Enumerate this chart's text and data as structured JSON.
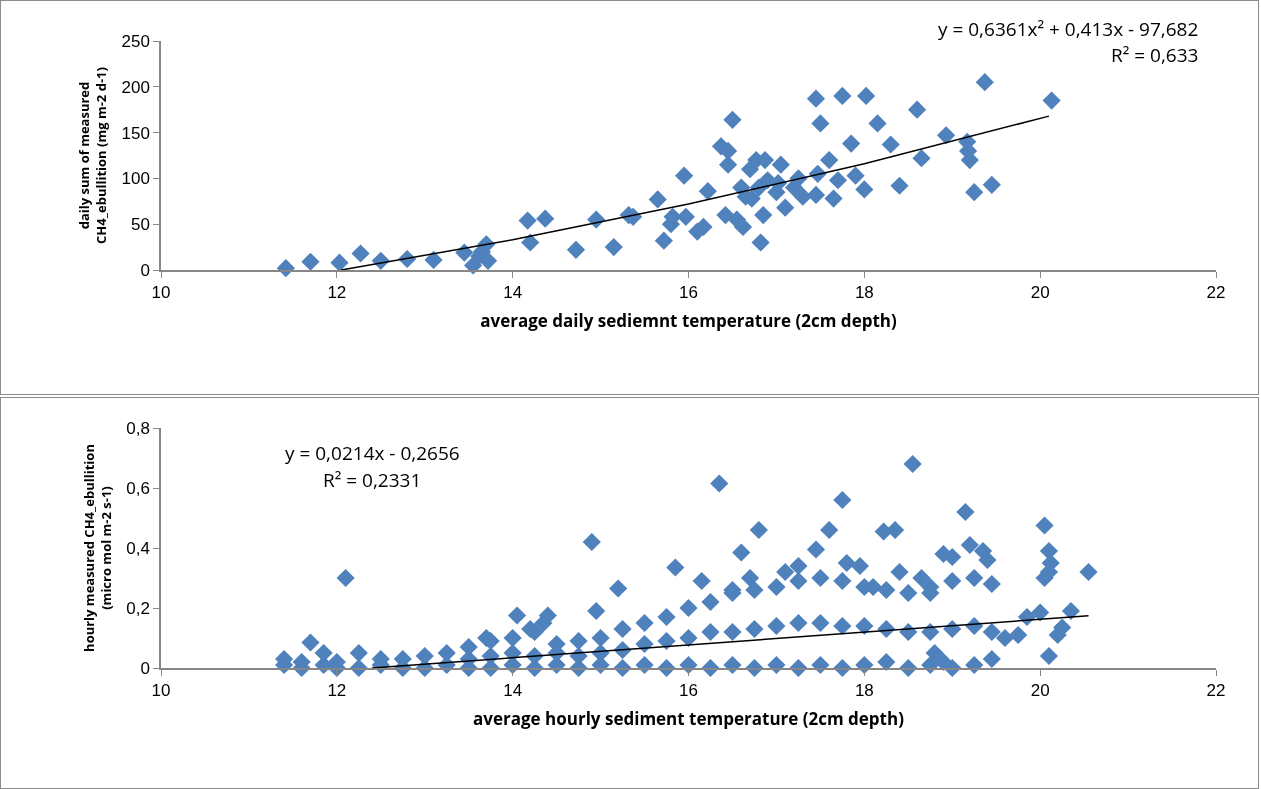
{
  "chart_data": [
    {
      "type": "scatter",
      "xlabel": "average daily sediemnt temperature (2cm depth)",
      "ylabel": "daily sum of measured\nCH4_ebullition (mg m-2 d-1)",
      "xlim": [
        10,
        22
      ],
      "xticks": [
        10,
        12,
        14,
        16,
        18,
        20,
        22
      ],
      "ylim": [
        0,
        250
      ],
      "yticks": [
        0,
        50,
        100,
        150,
        200,
        250
      ],
      "marker": "diamond",
      "grid": false,
      "annotations": [
        "y = 0,6361x² + 0,413x - 97,682",
        "R² = 0,633"
      ],
      "series": [
        {
          "color": "#4f81bd",
          "x": [
            11.42,
            11.7,
            12.03,
            12.27,
            12.5,
            12.8,
            13.1,
            13.45,
            13.55,
            13.62,
            13.7,
            13.72,
            13.65,
            14.17,
            14.2,
            14.37,
            14.72,
            14.95,
            15.15,
            15.32,
            15.37,
            15.65,
            15.72,
            15.8,
            15.82,
            15.95,
            15.97,
            16.1,
            16.17,
            16.22,
            16.37,
            16.45,
            16.5,
            16.42,
            16.45,
            16.55,
            16.6,
            16.62,
            16.65,
            16.7,
            16.72,
            16.77,
            16.8,
            16.82,
            16.85,
            16.87,
            16.9,
            17.0,
            17.02,
            17.05,
            17.1,
            17.2,
            17.25,
            17.3,
            17.45,
            17.47,
            17.5,
            17.45,
            17.6,
            17.65,
            17.7,
            17.75,
            17.85,
            17.9,
            18.02,
            18.0,
            18.15,
            18.3,
            18.4,
            18.6,
            18.65,
            18.93,
            19.17,
            19.18,
            19.2,
            19.25,
            19.37,
            19.45,
            20.13
          ],
          "values": [
            2,
            9,
            8,
            18,
            10,
            12,
            11,
            19,
            5,
            15,
            28,
            10,
            20,
            54,
            30,
            56,
            22,
            55,
            25,
            60,
            58,
            77,
            32,
            50,
            58,
            103,
            58,
            42,
            47,
            86,
            135,
            130,
            164,
            60,
            115,
            55,
            90,
            47,
            80,
            110,
            78,
            120,
            90,
            30,
            60,
            120,
            98,
            85,
            95,
            115,
            68,
            90,
            100,
            80,
            187,
            105,
            160,
            82,
            120,
            78,
            98,
            190,
            138,
            103,
            190,
            88,
            160,
            137,
            92,
            175,
            122,
            147,
            140,
            130,
            120,
            85,
            205,
            93,
            185
          ]
        },
        {
          "type": "line",
          "color": "#000000",
          "marker": "none",
          "x": [
            12.05,
            14,
            16,
            18,
            20.1
          ],
          "values": [
            0,
            33,
            72,
            116,
            168
          ]
        }
      ]
    },
    {
      "type": "scatter",
      "xlabel": "average hourly sediment temperature (2cm depth)",
      "ylabel": "hourly measured CH4_ebullition\n(micro mol m-2 s-1)",
      "xlim": [
        10,
        22
      ],
      "xticks": [
        10,
        12,
        14,
        16,
        18,
        20,
        22
      ],
      "ylim": [
        0,
        0.8
      ],
      "yticks": [
        0,
        {
          "value": 0.2,
          "label": "0,2"
        },
        {
          "value": 0.4,
          "label": "0,4"
        },
        {
          "value": 0.6,
          "label": "0,6"
        },
        {
          "value": 0.8,
          "label": "0,8"
        }
      ],
      "marker": "diamond",
      "grid": false,
      "annotations": [
        "y = 0,0214x - 0,2656",
        "R² = 0,2331"
      ],
      "series": [
        {
          "color": "#4f81bd",
          "x": [
            12.1,
            14.9,
            16.35,
            18.55,
            17.75,
            19.15,
            20.05,
            16.8,
            18.22,
            18.35,
            15.85,
            15.2,
            14.95,
            14.05,
            14.4,
            11.7,
            13.7,
            14.2,
            14.35,
            16.6,
            17.6,
            17.45,
            18.9,
            19.0,
            19.2,
            19.35,
            19.4,
            20.1,
            20.12,
            20.1,
            20.05,
            20.55,
            20.35,
            20.25,
            20.2,
            20.1,
            19.85,
            20.0,
            16.7,
            16.15,
            16.5,
            17.1,
            17.25,
            17.8,
            17.95,
            18.1,
            18.4,
            18.65,
            18.75,
            11.4,
            11.4,
            11.6,
            11.6,
            11.85,
            11.85,
            12.0,
            12.0,
            12.25,
            12.25,
            12.5,
            12.5,
            12.75,
            12.75,
            13.0,
            13.0,
            13.25,
            13.25,
            13.5,
            13.5,
            13.5,
            13.75,
            13.75,
            13.75,
            14.0,
            14.0,
            14.0,
            14.25,
            14.25,
            14.25,
            14.5,
            14.5,
            14.5,
            14.75,
            14.75,
            14.75,
            15.0,
            15.0,
            15.0,
            15.25,
            15.25,
            15.25,
            15.5,
            15.5,
            15.5,
            15.75,
            15.75,
            15.75,
            16.0,
            16.0,
            16.0,
            16.25,
            16.25,
            16.25,
            16.5,
            16.5,
            16.5,
            16.75,
            16.75,
            16.75,
            17.0,
            17.0,
            17.0,
            17.25,
            17.25,
            17.25,
            17.5,
            17.5,
            17.5,
            17.75,
            17.75,
            17.75,
            18.0,
            18.0,
            18.0,
            18.25,
            18.25,
            18.25,
            18.5,
            18.5,
            18.5,
            18.75,
            18.75,
            18.75,
            19.0,
            19.0,
            19.0,
            19.25,
            19.25,
            19.25,
            19.45,
            19.45,
            19.45,
            19.6,
            19.75,
            18.8,
            18.9
          ],
          "values": [
            0.3,
            0.42,
            0.615,
            0.68,
            0.56,
            0.52,
            0.475,
            0.46,
            0.455,
            0.46,
            0.335,
            0.265,
            0.19,
            0.175,
            0.175,
            0.085,
            0.1,
            0.13,
            0.15,
            0.385,
            0.46,
            0.395,
            0.38,
            0.37,
            0.41,
            0.39,
            0.36,
            0.39,
            0.35,
            0.32,
            0.3,
            0.32,
            0.19,
            0.135,
            0.11,
            0.04,
            0.17,
            0.185,
            0.3,
            0.29,
            0.26,
            0.32,
            0.34,
            0.35,
            0.34,
            0.27,
            0.32,
            0.3,
            0.25,
            0.01,
            0.03,
            0,
            0.02,
            0.01,
            0.05,
            0,
            0.02,
            0,
            0.05,
            0.01,
            0.03,
            0,
            0.03,
            0,
            0.04,
            0.01,
            0.05,
            0,
            0.03,
            0.07,
            0,
            0.04,
            0.09,
            0.01,
            0.05,
            0.1,
            0,
            0.04,
            0.12,
            0.01,
            0.05,
            0.08,
            0,
            0.04,
            0.09,
            0.01,
            0.05,
            0.1,
            0,
            0.06,
            0.13,
            0.01,
            0.08,
            0.15,
            0,
            0.09,
            0.17,
            0.01,
            0.1,
            0.2,
            0,
            0.12,
            0.22,
            0.01,
            0.12,
            0.25,
            0,
            0.13,
            0.26,
            0.01,
            0.14,
            0.27,
            0,
            0.15,
            0.29,
            0.01,
            0.15,
            0.3,
            0,
            0.14,
            0.29,
            0.01,
            0.14,
            0.27,
            0.02,
            0.13,
            0.26,
            0,
            0.12,
            0.25,
            0.01,
            0.12,
            0.27,
            0,
            0.13,
            0.29,
            0.01,
            0.14,
            0.3,
            0.03,
            0.12,
            0.28,
            0.1,
            0.11,
            0.05,
            0.02
          ]
        },
        {
          "type": "line",
          "color": "#000000",
          "marker": "none",
          "x": [
            12.4,
            20.55
          ],
          "values": [
            0,
            0.174
          ]
        }
      ]
    }
  ]
}
